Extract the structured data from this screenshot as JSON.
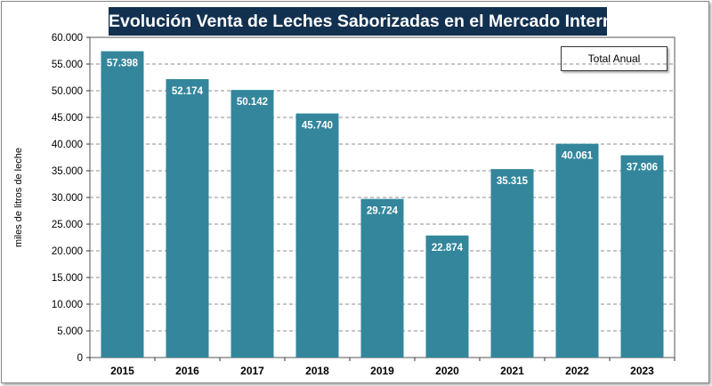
{
  "chart_data": {
    "type": "bar",
    "title": "Evolución Venta de Leches Saborizadas en el Mercado Interno",
    "ylabel": "miles de litros de leche",
    "xlabel": "",
    "legend": "Total Anual",
    "legend_position": "top-right",
    "grid": true,
    "ylim": [
      0,
      60000
    ],
    "ytick_step": 5000,
    "ytick_labels": [
      "0",
      "5.000",
      "10.000",
      "15.000",
      "20.000",
      "25.000",
      "30.000",
      "35.000",
      "40.000",
      "45.000",
      "50.000",
      "55.000",
      "60.000"
    ],
    "categories": [
      "2015",
      "2016",
      "2017",
      "2018",
      "2019",
      "2020",
      "2021",
      "2022",
      "2023"
    ],
    "values": [
      57398,
      52174,
      50142,
      45740,
      29724,
      22874,
      35315,
      40061,
      37906
    ],
    "data_labels": [
      "57.398",
      "52.174",
      "50.142",
      "45.740",
      "29.724",
      "22.874",
      "35.315",
      "40.061",
      "37.906"
    ],
    "bar_color": "#33869c",
    "title_background": "#12304f"
  }
}
